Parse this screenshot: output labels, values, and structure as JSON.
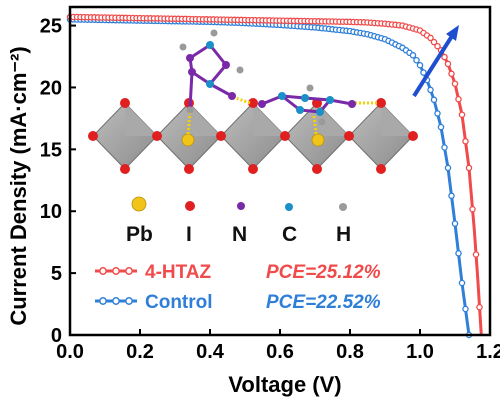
{
  "chart_data": {
    "type": "line",
    "xlabel": "Voltage (V)",
    "ylabel": "Current Density (mA·cm⁻²)",
    "xlim": [
      0.0,
      1.2
    ],
    "ylim": [
      0,
      26.5
    ],
    "x_ticks": [
      "0.0",
      "0.2",
      "0.4",
      "0.6",
      "0.8",
      "1.0",
      "1.2"
    ],
    "x_tick_values": [
      0.0,
      0.2,
      0.4,
      0.6,
      0.8,
      1.0,
      1.2
    ],
    "y_ticks": [
      "0",
      "5",
      "10",
      "15",
      "20",
      "25"
    ],
    "y_tick_values": [
      0,
      5,
      10,
      15,
      20,
      25
    ],
    "grid": false,
    "legend_placement": "bottom-left",
    "series": [
      {
        "name": "4-HTAZ",
        "annotation": "PCE=25.12%",
        "color": "#f04a4a",
        "marker": "open-circle",
        "points": [
          [
            0.0,
            25.7
          ],
          [
            0.1,
            25.65
          ],
          [
            0.2,
            25.6
          ],
          [
            0.3,
            25.55
          ],
          [
            0.4,
            25.5
          ],
          [
            0.5,
            25.45
          ],
          [
            0.6,
            25.4
          ],
          [
            0.7,
            25.35
          ],
          [
            0.8,
            25.3
          ],
          [
            0.85,
            25.25
          ],
          [
            0.9,
            25.15
          ],
          [
            0.95,
            25.0
          ],
          [
            1.0,
            24.6
          ],
          [
            1.03,
            24.0
          ],
          [
            1.06,
            23.0
          ],
          [
            1.08,
            21.9
          ],
          [
            1.1,
            20.3
          ],
          [
            1.12,
            17.8
          ],
          [
            1.14,
            13.5
          ],
          [
            1.155,
            8.5
          ],
          [
            1.165,
            4.5
          ],
          [
            1.175,
            0.0
          ]
        ]
      },
      {
        "name": "Control",
        "annotation": "PCE=22.52%",
        "color": "#2f7fd8",
        "marker": "open-circle",
        "points": [
          [
            0.0,
            25.5
          ],
          [
            0.1,
            25.45
          ],
          [
            0.2,
            25.4
          ],
          [
            0.3,
            25.35
          ],
          [
            0.4,
            25.3
          ],
          [
            0.5,
            25.2
          ],
          [
            0.6,
            25.05
          ],
          [
            0.7,
            24.85
          ],
          [
            0.8,
            24.55
          ],
          [
            0.85,
            24.3
          ],
          [
            0.9,
            23.9
          ],
          [
            0.95,
            23.2
          ],
          [
            0.98,
            22.6
          ],
          [
            1.0,
            21.8
          ],
          [
            1.02,
            20.6
          ],
          [
            1.04,
            19.0
          ],
          [
            1.06,
            16.8
          ],
          [
            1.08,
            13.5
          ],
          [
            1.1,
            9.0
          ],
          [
            1.12,
            4.2
          ],
          [
            1.14,
            0.0
          ]
        ]
      }
    ],
    "arrow_color": "#1e4fd0",
    "inset": {
      "description_labels": [
        "Pb",
        "I",
        "N",
        "C",
        "H"
      ],
      "colors": {
        "Pb": "#f0c419",
        "I": "#e02020",
        "N": "#7a2aa8",
        "C": "#1a8fc8",
        "H": "#9a9a9a"
      }
    }
  }
}
